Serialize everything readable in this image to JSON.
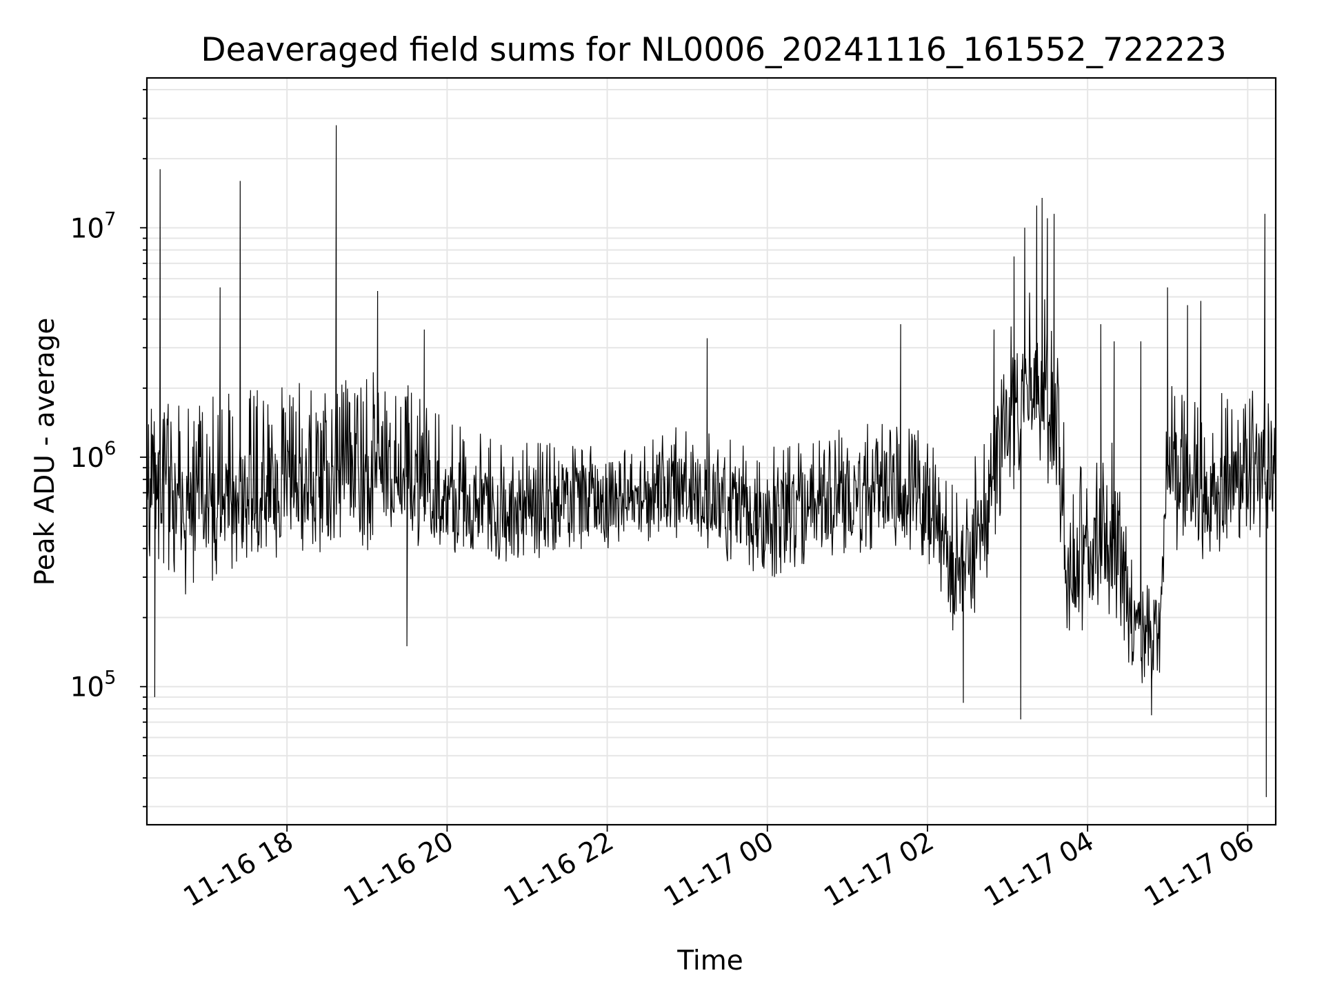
{
  "chart_data": {
    "type": "line",
    "title": "Deaveraged field sums for NL0006_20241116_161552_722223",
    "xlabel": "Time",
    "ylabel": "Peak ADU - average",
    "y_scale": "log",
    "ylim": [
      25000,
      45000000
    ],
    "xlim": [
      "11-16 16:15",
      "11-17 06:21"
    ],
    "grid": true,
    "line_color": "#000000",
    "grid_color": "#e6e6e6",
    "x_ticks": [
      {
        "time": "11-16 18:00",
        "label": "11-16 18"
      },
      {
        "time": "11-16 20:00",
        "label": "11-16 20"
      },
      {
        "time": "11-16 22:00",
        "label": "11-16 22"
      },
      {
        "time": "11-17 00:00",
        "label": "11-17 00"
      },
      {
        "time": "11-17 02:00",
        "label": "11-17 02"
      },
      {
        "time": "11-17 04:00",
        "label": "11-17 04"
      },
      {
        "time": "11-17 06:00",
        "label": "11-17 06"
      }
    ],
    "y_ticks": [
      {
        "value": 100000,
        "base": "10",
        "exp": "5"
      },
      {
        "value": 1000000,
        "base": "10",
        "exp": "6"
      },
      {
        "value": 10000000,
        "base": "10",
        "exp": "7"
      }
    ],
    "series": [
      {
        "description_of_shape": "dense noisy series sampled every ~1-2 min; anchors listed as [time, lower envelope, typical, upper envelope]",
        "envelope": [
          [
            "11-16 16:15",
            300000,
            900000,
            2200000
          ],
          [
            "11-16 16:45",
            250000,
            550000,
            1800000
          ],
          [
            "11-16 17:30",
            350000,
            700000,
            2000000
          ],
          [
            "11-16 18:30",
            380000,
            750000,
            2200000
          ],
          [
            "11-16 19:30",
            400000,
            850000,
            2500000
          ],
          [
            "11-16 20:00",
            350000,
            600000,
            1500000
          ],
          [
            "11-16 21:00",
            350000,
            550000,
            1200000
          ],
          [
            "11-16 22:00",
            400000,
            650000,
            1100000
          ],
          [
            "11-16 23:00",
            450000,
            750000,
            1400000
          ],
          [
            "11-16 23:30",
            350000,
            600000,
            1200000
          ],
          [
            "11-17 00:00",
            280000,
            500000,
            1100000
          ],
          [
            "11-17 00:45",
            350000,
            650000,
            1300000
          ],
          [
            "11-17 01:30",
            400000,
            750000,
            1500000
          ],
          [
            "11-17 02:00",
            350000,
            650000,
            1300000
          ],
          [
            "11-17 02:20",
            150000,
            300000,
            800000
          ],
          [
            "11-17 02:45",
            250000,
            500000,
            1200000
          ],
          [
            "11-17 03:00",
            700000,
            1500000,
            3500000
          ],
          [
            "11-17 03:20",
            800000,
            2000000,
            6000000
          ],
          [
            "11-17 03:35",
            700000,
            1800000,
            5000000
          ],
          [
            "11-17 03:45",
            150000,
            300000,
            900000
          ],
          [
            "11-17 04:00",
            180000,
            350000,
            1000000
          ],
          [
            "11-17 04:20",
            200000,
            450000,
            1200000
          ],
          [
            "11-17 04:35",
            100000,
            180000,
            300000
          ],
          [
            "11-17 04:55",
            110000,
            170000,
            280000
          ],
          [
            "11-17 05:00",
            400000,
            900000,
            2500000
          ],
          [
            "11-17 05:30",
            350000,
            700000,
            2000000
          ],
          [
            "11-17 06:00",
            400000,
            800000,
            2000000
          ],
          [
            "11-17 06:21",
            500000,
            1000000,
            2200000
          ]
        ],
        "spikes": [
          [
            "11-16 16:25",
            18000000
          ],
          [
            "11-16 16:21",
            90000
          ],
          [
            "11-16 17:10",
            5500000
          ],
          [
            "11-16 17:25",
            16000000
          ],
          [
            "11-16 18:37",
            28000000
          ],
          [
            "11-16 19:08",
            5300000
          ],
          [
            "11-16 19:43",
            3600000
          ],
          [
            "11-16 19:30",
            150000
          ],
          [
            "11-16 23:15",
            3300000
          ],
          [
            "11-17 01:40",
            3800000
          ],
          [
            "11-17 02:50",
            3600000
          ],
          [
            "11-17 03:05",
            7500000
          ],
          [
            "11-17 03:13",
            10000000
          ],
          [
            "11-17 03:22",
            12500000
          ],
          [
            "11-17 03:26",
            13500000
          ],
          [
            "11-17 03:30",
            11000000
          ],
          [
            "11-17 03:35",
            11500000
          ],
          [
            "11-17 03:10",
            72000
          ],
          [
            "11-17 02:27",
            85000
          ],
          [
            "11-17 04:10",
            3800000
          ],
          [
            "11-17 04:20",
            3200000
          ],
          [
            "11-17 04:40",
            3200000
          ],
          [
            "11-17 05:00",
            5500000
          ],
          [
            "11-17 05:15",
            4600000
          ],
          [
            "11-17 05:25",
            4800000
          ],
          [
            "11-17 04:48",
            75000
          ],
          [
            "11-17 06:13",
            11500000
          ],
          [
            "11-17 06:14",
            33000
          ]
        ]
      }
    ]
  }
}
